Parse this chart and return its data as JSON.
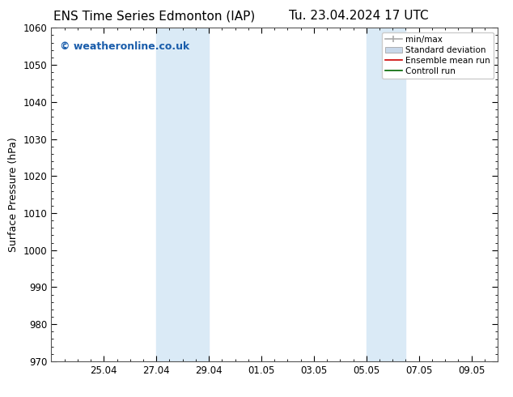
{
  "title_left": "ENS Time Series Edmonton (IAP)",
  "title_right": "Tu. 23.04.2024 17 UTC",
  "ylabel": "Surface Pressure (hPa)",
  "ylim": [
    970,
    1060
  ],
  "yticks": [
    970,
    980,
    990,
    1000,
    1010,
    1020,
    1030,
    1040,
    1050,
    1060
  ],
  "xlim_days": [
    0,
    17
  ],
  "x_tick_labels": [
    "25.04",
    "27.04",
    "29.04",
    "01.05",
    "03.05",
    "05.05",
    "07.05",
    "09.05"
  ],
  "x_tick_offsets_days": [
    2,
    4,
    6,
    8,
    10,
    12,
    14,
    16
  ],
  "x_minor_tick_spacing": 0.5,
  "shaded_bands": [
    {
      "x_start_days": 4,
      "x_end_days": 6,
      "color": "#daeaf6"
    },
    {
      "x_start_days": 12,
      "x_end_days": 13.5,
      "color": "#daeaf6"
    }
  ],
  "background_color": "#ffffff",
  "plot_bg_color": "#ffffff",
  "watermark_text": "© weatheronline.co.uk",
  "watermark_color": "#1a5dab",
  "watermark_fontsize": 9,
  "legend_items": [
    {
      "label": "min/max",
      "color": "#aaaaaa",
      "linestyle": "-",
      "linewidth": 1.2
    },
    {
      "label": "Standard deviation",
      "color": "#c8d8ea",
      "patch": true
    },
    {
      "label": "Ensemble mean run",
      "color": "#cc0000",
      "linestyle": "-",
      "linewidth": 1.2
    },
    {
      "label": "Controll run",
      "color": "#006600",
      "linestyle": "-",
      "linewidth": 1.2
    }
  ],
  "title_fontsize": 11,
  "axis_label_fontsize": 9,
  "tick_fontsize": 8.5,
  "spine_color": "#555555",
  "spine_linewidth": 0.8
}
